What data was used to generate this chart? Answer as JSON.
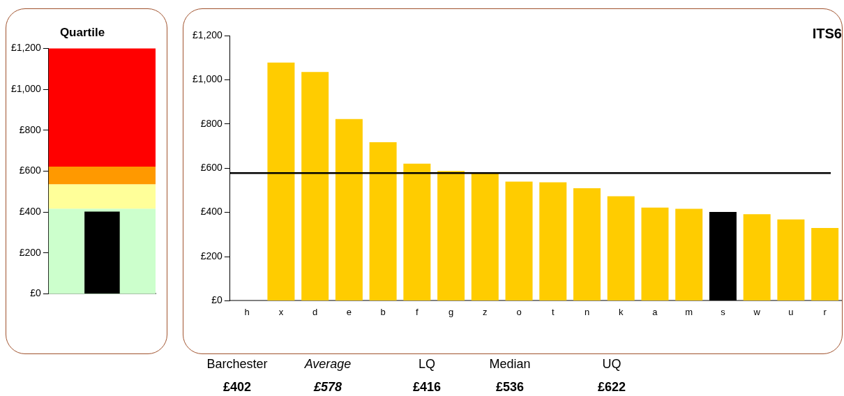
{
  "chart_data": [
    {
      "type": "bar",
      "title": "Quartile",
      "categories": [
        null
      ],
      "values": [
        402
      ],
      "colors": [
        "#000000"
      ],
      "ylim": [
        0,
        1200
      ],
      "yticks": [
        {
          "value": 0,
          "label": "£0"
        },
        {
          "value": 200,
          "label": "£200"
        },
        {
          "value": 400,
          "label": "£400"
        },
        {
          "value": 600,
          "label": "£600"
        },
        {
          "value": 800,
          "label": "£800"
        },
        {
          "value": 1000,
          "label": "£1,000"
        },
        {
          "value": 1200,
          "label": "£1,200"
        }
      ],
      "bands": [
        {
          "axis": "y",
          "from": 0,
          "to": 416,
          "color": "#ccffcc"
        },
        {
          "axis": "y",
          "from": 416,
          "to": 536,
          "color": "#ffff99"
        },
        {
          "axis": "y",
          "from": 536,
          "to": 622,
          "color": "#ff9900"
        },
        {
          "axis": "y",
          "from": 622,
          "to": 1200,
          "color": "#ff0000"
        }
      ],
      "grid": false,
      "legend": false
    },
    {
      "type": "bar",
      "title": "ITS6",
      "categories": [
        "h",
        "x",
        "d",
        "e",
        "b",
        "f",
        "g",
        "z",
        "o",
        "t",
        "n",
        "k",
        "a",
        "m",
        "s",
        "w",
        "u",
        "r"
      ],
      "values": [
        null,
        1078,
        1035,
        822,
        717,
        620,
        587,
        576,
        539,
        536,
        509,
        473,
        422,
        416,
        402,
        392,
        368,
        329
      ],
      "colors": [
        "#ffcc00",
        "#ffcc00",
        "#ffcc00",
        "#ffcc00",
        "#ffcc00",
        "#ffcc00",
        "#ffcc00",
        "#ffcc00",
        "#ffcc00",
        "#ffcc00",
        "#ffcc00",
        "#ffcc00",
        "#ffcc00",
        "#ffcc00",
        "#000000",
        "#ffcc00",
        "#ffcc00",
        "#ffcc00"
      ],
      "ylim": [
        0,
        1200
      ],
      "yticks": [
        {
          "value": 0,
          "label": "£0"
        },
        {
          "value": 200,
          "label": "£200"
        },
        {
          "value": 400,
          "label": "£400"
        },
        {
          "value": 600,
          "label": "£600"
        },
        {
          "value": 800,
          "label": "£800"
        },
        {
          "value": 1000,
          "label": "£1,000"
        },
        {
          "value": 1200,
          "label": "£1,200"
        }
      ],
      "ref_lines": [
        {
          "axis": "y",
          "value": 578,
          "color": "#000000"
        }
      ],
      "annotations": [
        "Barchester",
        "Average",
        "LQ",
        "Median",
        "UQ",
        "£402",
        "£578",
        "£416",
        "£536",
        "£622"
      ],
      "grid": false,
      "legend": false
    }
  ]
}
